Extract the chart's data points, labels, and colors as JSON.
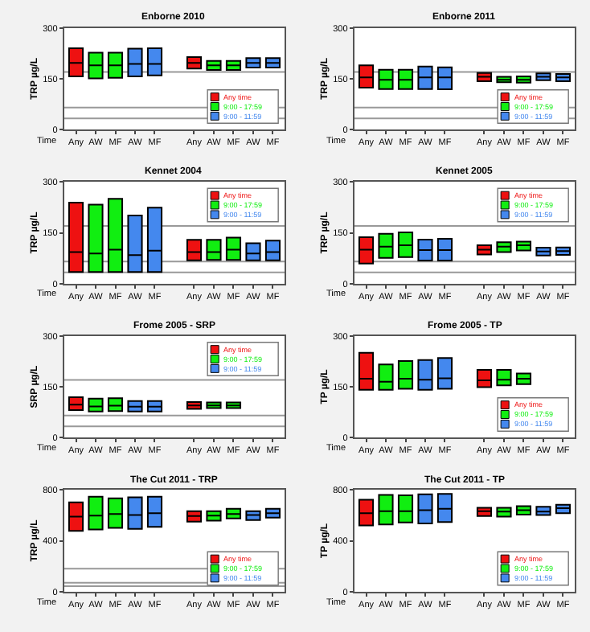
{
  "chart_data": [
    {
      "type": "box",
      "title": "Enborne 2010",
      "ylabel": "TRP µg/L",
      "categories": [
        "Any",
        "AW",
        "MF",
        "AW",
        "MF",
        null,
        "Any",
        "AW",
        "MF",
        "AW",
        "MF"
      ],
      "ylim": [
        0,
        300
      ],
      "yticks": [
        0,
        150,
        300
      ],
      "legend": "bottom right",
      "annotations": [
        "Time"
      ],
      "ref_lines": [
        {
          "axis": "y",
          "value": 170
        },
        {
          "axis": "y",
          "value": 65
        },
        {
          "axis": "y",
          "value": 33
        }
      ],
      "series": [
        {
          "name": "Any time",
          "color": "#ee1111",
          "boxes": [
            {
              "low": 157,
              "q1": 157,
              "median": 197,
              "q3": 240,
              "high": 240
            },
            null,
            null,
            null,
            null,
            null,
            {
              "low": 180,
              "q1": 180,
              "median": 197,
              "q3": 214,
              "high": 214
            },
            null,
            null,
            null,
            null
          ]
        },
        {
          "name": "9:00 - 17:59",
          "color": "#11ee11",
          "boxes": [
            null,
            {
              "low": 151,
              "q1": 151,
              "median": 190,
              "q3": 227,
              "high": 227
            },
            {
              "low": 153,
              "q1": 153,
              "median": 190,
              "q3": 227,
              "high": 227
            },
            null,
            null,
            null,
            null,
            {
              "low": 176,
              "q1": 176,
              "median": 190,
              "q3": 203,
              "high": 203
            },
            {
              "low": 176,
              "q1": 176,
              "median": 190,
              "q3": 203,
              "high": 203
            },
            null,
            null
          ]
        },
        {
          "name": "9:00 - 11:59",
          "color": "#4488ee",
          "boxes": [
            null,
            null,
            null,
            {
              "low": 157,
              "q1": 157,
              "median": 194,
              "q3": 239,
              "high": 239
            },
            {
              "low": 160,
              "q1": 160,
              "median": 194,
              "q3": 240,
              "high": 240
            },
            null,
            null,
            null,
            null,
            {
              "low": 183,
              "q1": 183,
              "median": 197,
              "q3": 211,
              "high": 211
            },
            {
              "low": 183,
              "q1": 183,
              "median": 197,
              "q3": 211,
              "high": 211
            }
          ]
        }
      ]
    },
    {
      "type": "box",
      "title": "Enborne 2011",
      "ylabel": "TRP µg/L",
      "categories": [
        "Any",
        "AW",
        "MF",
        "AW",
        "MF",
        null,
        "Any",
        "AW",
        "MF",
        "AW",
        "MF"
      ],
      "ylim": [
        0,
        300
      ],
      "yticks": [
        0,
        150,
        300
      ],
      "legend": "bottom right",
      "annotations": [
        "Time"
      ],
      "ref_lines": [
        {
          "axis": "y",
          "value": 170
        },
        {
          "axis": "y",
          "value": 65
        },
        {
          "axis": "y",
          "value": 33
        }
      ],
      "series": [
        {
          "name": "Any time",
          "color": "#ee1111",
          "boxes": [
            {
              "low": 124,
              "q1": 124,
              "median": 154,
              "q3": 190,
              "high": 190
            },
            null,
            null,
            null,
            null,
            null,
            {
              "low": 143,
              "q1": 143,
              "median": 156,
              "q3": 167,
              "high": 167
            },
            null,
            null,
            null,
            null
          ]
        },
        {
          "name": "9:00 - 17:59",
          "color": "#11ee11",
          "boxes": [
            null,
            {
              "low": 120,
              "q1": 120,
              "median": 147,
              "q3": 177,
              "high": 177
            },
            {
              "low": 120,
              "q1": 120,
              "median": 147,
              "q3": 177,
              "high": 177
            },
            null,
            null,
            null,
            null,
            {
              "low": 140,
              "q1": 140,
              "median": 147,
              "q3": 156,
              "high": 156
            },
            {
              "low": 139,
              "q1": 139,
              "median": 147,
              "q3": 157,
              "high": 157
            },
            null,
            null
          ]
        },
        {
          "name": "9:00 - 11:59",
          "color": "#4488ee",
          "boxes": [
            null,
            null,
            null,
            {
              "low": 120,
              "q1": 120,
              "median": 154,
              "q3": 186,
              "high": 186
            },
            {
              "low": 119,
              "q1": 119,
              "median": 154,
              "q3": 184,
              "high": 184
            },
            null,
            null,
            null,
            null,
            {
              "low": 146,
              "q1": 146,
              "median": 156,
              "q3": 166,
              "high": 166
            },
            {
              "low": 143,
              "q1": 143,
              "median": 154,
              "q3": 164,
              "high": 164
            }
          ]
        }
      ]
    },
    {
      "type": "box",
      "title": "Kennet 2004",
      "ylabel": "TRP µg/L",
      "categories": [
        "Any",
        "AW",
        "MF",
        "AW",
        "MF",
        null,
        "Any",
        "AW",
        "MF",
        "AW",
        "MF"
      ],
      "ylim": [
        0,
        300
      ],
      "yticks": [
        0,
        150,
        300
      ],
      "legend": "top right",
      "annotations": [
        "Time"
      ],
      "ref_lines": [
        {
          "axis": "y",
          "value": 170
        },
        {
          "axis": "y",
          "value": 65
        },
        {
          "axis": "y",
          "value": 33
        }
      ],
      "series": [
        {
          "name": "Any time",
          "color": "#ee1111",
          "boxes": [
            {
              "low": 34,
              "q1": 34,
              "median": 93,
              "q3": 239,
              "high": 239
            },
            null,
            null,
            null,
            null,
            null,
            {
              "low": 69,
              "q1": 69,
              "median": 93,
              "q3": 129,
              "high": 129
            },
            null,
            null,
            null,
            null
          ]
        },
        {
          "name": "9:00 - 17:59",
          "color": "#11ee11",
          "boxes": [
            null,
            {
              "low": 34,
              "q1": 34,
              "median": 89,
              "q3": 233,
              "high": 233
            },
            {
              "low": 34,
              "q1": 34,
              "median": 100,
              "q3": 250,
              "high": 250
            },
            null,
            null,
            null,
            null,
            {
              "low": 70,
              "q1": 70,
              "median": 93,
              "q3": 129,
              "high": 129
            },
            {
              "low": 70,
              "q1": 70,
              "median": 100,
              "q3": 136,
              "high": 136
            },
            null,
            null
          ]
        },
        {
          "name": "9:00 - 11:59",
          "color": "#4488ee",
          "boxes": [
            null,
            null,
            null,
            {
              "low": 34,
              "q1": 34,
              "median": 84,
              "q3": 201,
              "high": 201
            },
            {
              "low": 34,
              "q1": 34,
              "median": 97,
              "q3": 224,
              "high": 224
            },
            null,
            null,
            null,
            null,
            {
              "low": 69,
              "q1": 69,
              "median": 89,
              "q3": 119,
              "high": 119
            },
            {
              "low": 69,
              "q1": 69,
              "median": 93,
              "q3": 127,
              "high": 127
            }
          ]
        }
      ]
    },
    {
      "type": "box",
      "title": "Kennet 2005",
      "ylabel": "TRP µg/L",
      "categories": [
        "Any",
        "AW",
        "MF",
        "AW",
        "MF",
        null,
        "Any",
        "AW",
        "MF",
        "AW",
        "MF"
      ],
      "ylim": [
        0,
        300
      ],
      "yticks": [
        0,
        150,
        300
      ],
      "legend": "top right",
      "annotations": [
        "Time"
      ],
      "ref_lines": [
        {
          "axis": "y",
          "value": 170
        },
        {
          "axis": "y",
          "value": 65
        },
        {
          "axis": "y",
          "value": 33
        }
      ],
      "series": [
        {
          "name": "Any time",
          "color": "#ee1111",
          "boxes": [
            {
              "low": 59,
              "q1": 59,
              "median": 100,
              "q3": 137,
              "high": 137
            },
            null,
            null,
            null,
            null,
            null,
            {
              "low": 86,
              "q1": 86,
              "median": 100,
              "q3": 113,
              "high": 113
            },
            null,
            null,
            null,
            null
          ]
        },
        {
          "name": "9:00 - 17:59",
          "color": "#11ee11",
          "boxes": [
            null,
            {
              "low": 76,
              "q1": 76,
              "median": 109,
              "q3": 147,
              "high": 147
            },
            {
              "low": 78,
              "q1": 78,
              "median": 113,
              "q3": 151,
              "high": 151
            },
            null,
            null,
            null,
            null,
            {
              "low": 93,
              "q1": 93,
              "median": 109,
              "q3": 122,
              "high": 122
            },
            {
              "low": 98,
              "q1": 98,
              "median": 113,
              "q3": 124,
              "high": 124
            },
            null,
            null
          ]
        },
        {
          "name": "9:00 - 11:59",
          "color": "#4488ee",
          "boxes": [
            null,
            null,
            null,
            {
              "low": 68,
              "q1": 68,
              "median": 99,
              "q3": 130,
              "high": 130
            },
            {
              "low": 68,
              "q1": 68,
              "median": 99,
              "q3": 132,
              "high": 132
            },
            null,
            null,
            null,
            null,
            {
              "low": 83,
              "q1": 83,
              "median": 95,
              "q3": 106,
              "high": 106
            },
            {
              "low": 85,
              "q1": 85,
              "median": 96,
              "q3": 107,
              "high": 107
            }
          ]
        }
      ]
    },
    {
      "type": "box",
      "title": "Frome 2005 - SRP",
      "ylabel": "SRP µg/L",
      "categories": [
        "Any",
        "AW",
        "MF",
        "AW",
        "MF",
        null,
        "Any",
        "AW",
        "MF",
        "AW",
        "MF"
      ],
      "ylim": [
        0,
        300
      ],
      "yticks": [
        0,
        150,
        300
      ],
      "legend": "top right",
      "annotations": [
        "Time"
      ],
      "ref_lines": [
        {
          "axis": "y",
          "value": 170
        },
        {
          "axis": "y",
          "value": 65
        },
        {
          "axis": "y",
          "value": 33
        }
      ],
      "series": [
        {
          "name": "Any time",
          "color": "#ee1111",
          "boxes": [
            {
              "low": 81,
              "q1": 81,
              "median": 97,
              "q3": 119,
              "high": 119
            },
            null,
            null,
            null,
            null,
            null,
            {
              "low": 85,
              "q1": 85,
              "median": 95,
              "q3": 105,
              "high": 105
            },
            null,
            null,
            null,
            null
          ]
        },
        {
          "name": "9:00 - 17:59",
          "color": "#11ee11",
          "boxes": [
            null,
            {
              "low": 77,
              "q1": 77,
              "median": 92,
              "q3": 115,
              "high": 115
            },
            {
              "low": 78,
              "q1": 78,
              "median": 94,
              "q3": 116,
              "high": 116
            },
            null,
            null,
            null,
            null,
            {
              "low": 87,
              "q1": 87,
              "median": 95,
              "q3": 104,
              "high": 104
            },
            {
              "low": 87,
              "q1": 87,
              "median": 95,
              "q3": 104,
              "high": 104
            },
            null,
            null
          ]
        },
        {
          "name": "9:00 - 11:59",
          "color": "#4488ee",
          "boxes": [
            null,
            null,
            null,
            {
              "low": 77,
              "q1": 77,
              "median": 91,
              "q3": 108,
              "high": 108
            },
            {
              "low": 77,
              "q1": 77,
              "median": 91,
              "q3": 108,
              "high": 108
            },
            null,
            null,
            null,
            null,
            null,
            null
          ]
        }
      ]
    },
    {
      "type": "box",
      "title": "Frome 2005 - TP",
      "ylabel": "TP µg/L",
      "categories": [
        "Any",
        "AW",
        "MF",
        "AW",
        "MF",
        null,
        "Any",
        "AW",
        "MF",
        "AW",
        "MF"
      ],
      "ylim": [
        0,
        300
      ],
      "yticks": [
        0,
        150,
        300
      ],
      "legend": "bottom right",
      "annotations": [
        "Time"
      ],
      "series": [
        {
          "name": "Any time",
          "color": "#ee1111",
          "boxes": [
            {
              "low": 141,
              "q1": 141,
              "median": 174,
              "q3": 250,
              "high": 250
            },
            null,
            null,
            null,
            null,
            null,
            {
              "low": 149,
              "q1": 149,
              "median": 169,
              "q3": 200,
              "high": 200
            },
            null,
            null,
            null,
            null
          ]
        },
        {
          "name": "9:00 - 17:59",
          "color": "#11ee11",
          "boxes": [
            null,
            {
              "low": 141,
              "q1": 141,
              "median": 165,
              "q3": 216,
              "high": 216
            },
            {
              "low": 144,
              "q1": 144,
              "median": 174,
              "q3": 226,
              "high": 226
            },
            null,
            null,
            null,
            null,
            {
              "low": 154,
              "q1": 154,
              "median": 171,
              "q3": 200,
              "high": 200
            },
            {
              "low": 158,
              "q1": 158,
              "median": 174,
              "q3": 189,
              "high": 189
            },
            null,
            null
          ]
        },
        {
          "name": "9:00 - 11:59",
          "color": "#4488ee",
          "boxes": [
            null,
            null,
            null,
            {
              "low": 141,
              "q1": 141,
              "median": 171,
              "q3": 229,
              "high": 229
            },
            {
              "low": 144,
              "q1": 144,
              "median": 175,
              "q3": 235,
              "high": 235
            },
            null,
            null,
            null,
            null,
            null,
            null
          ]
        }
      ]
    },
    {
      "type": "box",
      "title": "The Cut 2011 - TRP",
      "ylabel": "TRP µg/L",
      "categories": [
        "Any",
        "AW",
        "MF",
        "AW",
        "MF",
        null,
        "Any",
        "AW",
        "MF",
        "AW",
        "MF"
      ],
      "ylim": [
        0,
        800
      ],
      "yticks": [
        0,
        400,
        800
      ],
      "legend": "bottom right",
      "annotations": [
        "Time"
      ],
      "ref_lines": [
        {
          "axis": "y",
          "value": 180
        },
        {
          "axis": "y",
          "value": 70
        },
        {
          "axis": "y",
          "value": 43
        }
      ],
      "series": [
        {
          "name": "Any time",
          "color": "#ee1111",
          "boxes": [
            {
              "low": 478,
              "q1": 478,
              "median": 590,
              "q3": 703,
              "high": 703
            },
            null,
            null,
            null,
            null,
            null,
            {
              "low": 551,
              "q1": 551,
              "median": 594,
              "q3": 633,
              "high": 633
            },
            null,
            null,
            null,
            null
          ]
        },
        {
          "name": "9:00 - 17:59",
          "color": "#11ee11",
          "boxes": [
            null,
            {
              "low": 489,
              "q1": 489,
              "median": 598,
              "q3": 746,
              "high": 746
            },
            {
              "low": 501,
              "q1": 501,
              "median": 610,
              "q3": 734,
              "high": 734
            },
            null,
            null,
            null,
            null,
            {
              "low": 559,
              "q1": 559,
              "median": 598,
              "q3": 633,
              "high": 633
            },
            {
              "low": 575,
              "q1": 575,
              "median": 610,
              "q3": 652,
              "high": 652
            },
            null,
            null
          ]
        },
        {
          "name": "9:00 - 11:59",
          "color": "#4488ee",
          "boxes": [
            null,
            null,
            null,
            {
              "low": 493,
              "q1": 493,
              "median": 602,
              "q3": 742,
              "high": 742
            },
            {
              "low": 509,
              "q1": 509,
              "median": 617,
              "q3": 746,
              "high": 746
            },
            null,
            null,
            null,
            null,
            {
              "low": 563,
              "q1": 563,
              "median": 602,
              "q3": 633,
              "high": 633
            },
            {
              "low": 582,
              "q1": 582,
              "median": 617,
              "q3": 652,
              "high": 652
            }
          ]
        }
      ]
    },
    {
      "type": "box",
      "title": "The Cut 2011 - TP",
      "ylabel": "TP µg/L",
      "categories": [
        "Any",
        "AW",
        "MF",
        "AW",
        "MF",
        null,
        "Any",
        "AW",
        "MF",
        "AW",
        "MF"
      ],
      "ylim": [
        0,
        800
      ],
      "yticks": [
        0,
        400,
        800
      ],
      "legend": "bottom right",
      "annotations": [
        "Time"
      ],
      "series": [
        {
          "name": "Any time",
          "color": "#ee1111",
          "boxes": [
            {
              "low": 520,
              "q1": 520,
              "median": 617,
              "q3": 723,
              "high": 723
            },
            null,
            null,
            null,
            null,
            null,
            {
              "low": 594,
              "q1": 594,
              "median": 633,
              "q3": 660,
              "high": 660
            },
            null,
            null,
            null,
            null
          ]
        },
        {
          "name": "9:00 - 17:59",
          "color": "#11ee11",
          "boxes": [
            null,
            {
              "low": 528,
              "q1": 528,
              "median": 633,
              "q3": 761,
              "high": 761
            },
            {
              "low": 544,
              "q1": 544,
              "median": 633,
              "q3": 757,
              "high": 757
            },
            null,
            null,
            null,
            null,
            {
              "low": 590,
              "q1": 590,
              "median": 629,
              "q3": 660,
              "high": 660
            },
            {
              "low": 606,
              "q1": 606,
              "median": 641,
              "q3": 672,
              "high": 672
            },
            null,
            null
          ]
        },
        {
          "name": "9:00 - 11:59",
          "color": "#4488ee",
          "boxes": [
            null,
            null,
            null,
            {
              "low": 536,
              "q1": 536,
              "median": 641,
              "q3": 765,
              "high": 765
            },
            {
              "low": 548,
              "q1": 548,
              "median": 652,
              "q3": 769,
              "high": 769
            },
            null,
            null,
            null,
            null,
            {
              "low": 602,
              "q1": 602,
              "median": 629,
              "q3": 668,
              "high": 668
            },
            {
              "low": 617,
              "q1": 617,
              "median": 656,
              "q3": 683,
              "high": 683
            }
          ]
        }
      ]
    }
  ]
}
